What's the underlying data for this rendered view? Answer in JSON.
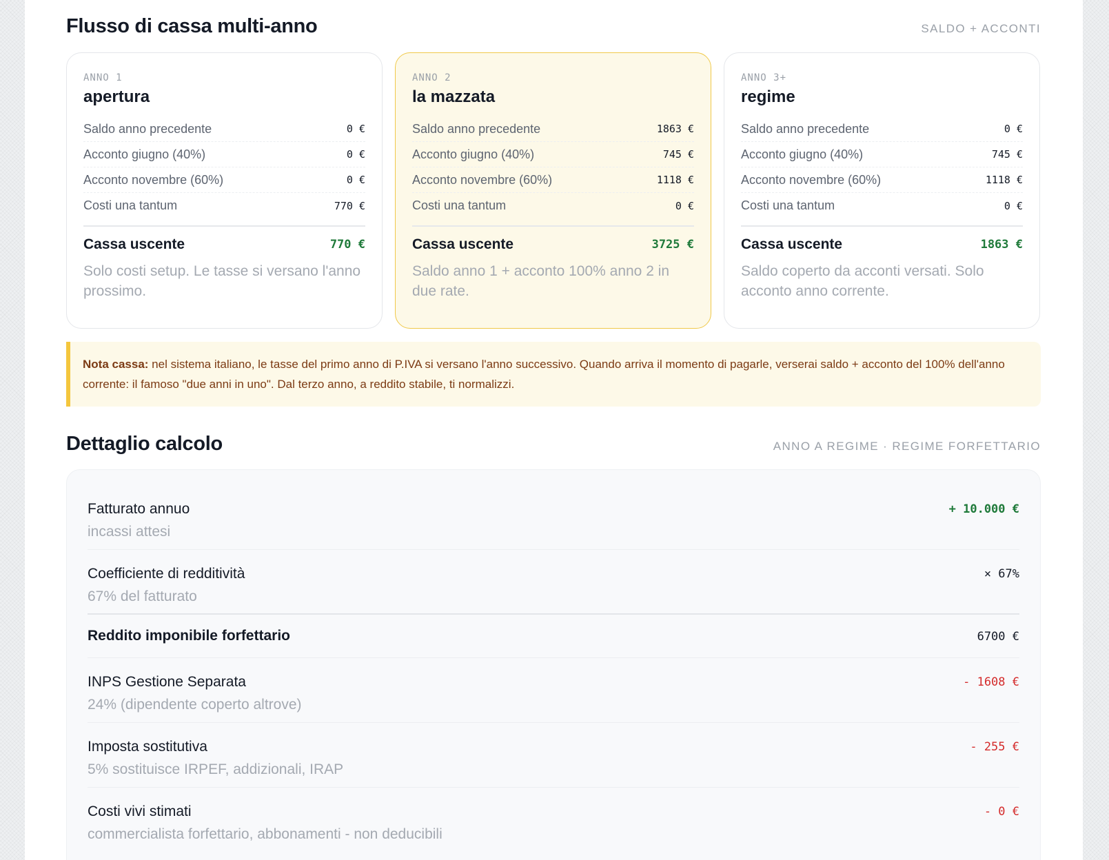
{
  "cashflow": {
    "title": "Flusso di cassa multi-anno",
    "tag": "SALDO + ACCONTI",
    "cards": [
      {
        "eyebrow": "ANNO 1",
        "title": "apertura",
        "rows": [
          {
            "label": "Saldo anno precedente",
            "value": "0 €"
          },
          {
            "label": "Acconto giugno (40%)",
            "value": "0 €"
          },
          {
            "label": "Acconto novembre (60%)",
            "value": "0 €"
          },
          {
            "label": "Costi una tantum",
            "value": "770 €"
          }
        ],
        "total_label": "Cassa uscente",
        "total_value": "770 €",
        "note": "Solo costi setup. Le tasse si versano l'anno prossimo."
      },
      {
        "eyebrow": "ANNO 2",
        "title": "la mazzata",
        "rows": [
          {
            "label": "Saldo anno precedente",
            "value": "1863 €"
          },
          {
            "label": "Acconto giugno (40%)",
            "value": "745 €"
          },
          {
            "label": "Acconto novembre (60%)",
            "value": "1118 €"
          },
          {
            "label": "Costi una tantum",
            "value": "0 €"
          }
        ],
        "total_label": "Cassa uscente",
        "total_value": "3725 €",
        "note": "Saldo anno 1 + acconto 100% anno 2 in due rate."
      },
      {
        "eyebrow": "ANNO 3+",
        "title": "regime",
        "rows": [
          {
            "label": "Saldo anno precedente",
            "value": "0 €"
          },
          {
            "label": "Acconto giugno (40%)",
            "value": "745 €"
          },
          {
            "label": "Acconto novembre (60%)",
            "value": "1118 €"
          },
          {
            "label": "Costi una tantum",
            "value": "0 €"
          }
        ],
        "total_label": "Cassa uscente",
        "total_value": "1863 €",
        "note": "Saldo coperto da acconti versati. Solo acconto anno corrente."
      }
    ]
  },
  "callout": {
    "lead": "Nota cassa:",
    "text": " nel sistema italiano, le tasse del primo anno di P.IVA si versano l'anno successivo. Quando arriva il momento di pagarle, verserai saldo + acconto del 100% dell'anno corrente: il famoso \"due anni in uno\". Dal terzo anno, a reddito stabile, ti normalizzi."
  },
  "detail": {
    "title": "Dettaglio calcolo",
    "tag": "ANNO A REGIME · REGIME FORFETTARIO",
    "rows": [
      {
        "label": "Fatturato annuo",
        "sub": "incassi attesi",
        "value": "+ 10.000 €"
      },
      {
        "label": "Coefficiente di redditività",
        "sub": "67% del fatturato",
        "value": "× 67%"
      },
      {
        "label": "Reddito imponibile forfettario",
        "value": "6700 €"
      },
      {
        "label": "INPS Gestione Separata",
        "sub": "24% (dipendente coperto altrove)",
        "value": "- 1608 €"
      },
      {
        "label": "Imposta sostitutiva",
        "sub": "5% sostituisce IRPEF, addizionali, IRAP",
        "value": "- 255 €"
      },
      {
        "label": "Costi vivi stimati",
        "sub": "commercialista forfettario, abbonamenti - non deducibili",
        "value": "- 0 €"
      }
    ]
  },
  "colors": {
    "positive": "#1f7a3a",
    "negative": "#d42b2b",
    "highlight_bg": "#fdf9e8",
    "highlight_border": "#f0c94a",
    "callout_text": "#7c3b14"
  }
}
